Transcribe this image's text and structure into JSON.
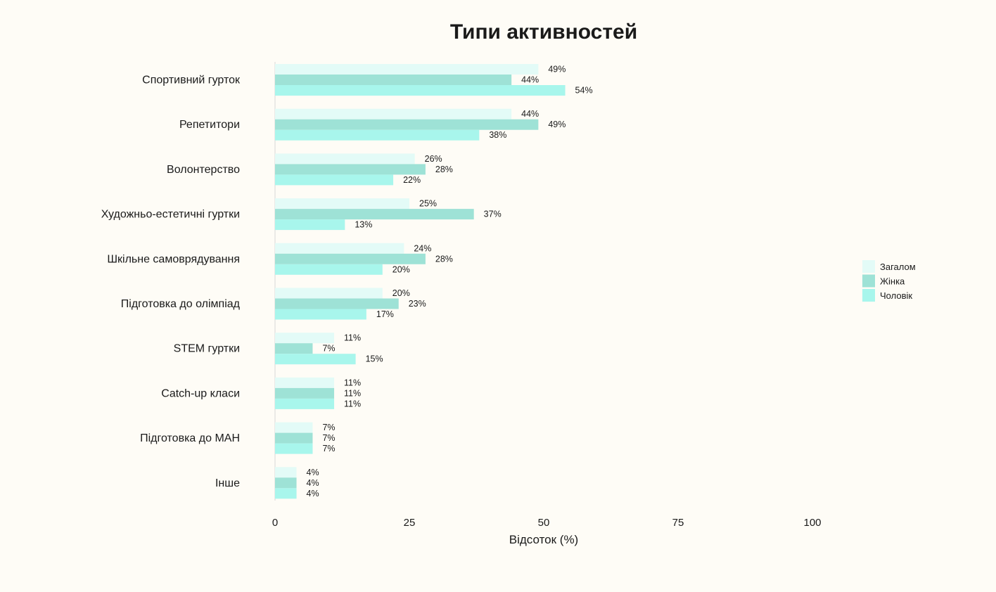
{
  "chart_data": {
    "type": "bar",
    "orientation": "horizontal",
    "title": "Типи активностей",
    "xlabel": "Відсоток (%)",
    "ylabel": "",
    "xlim": [
      0,
      100
    ],
    "xticks": [
      0,
      25,
      50,
      75,
      100
    ],
    "grid": false,
    "legend_position": "right",
    "value_suffix": "%",
    "categories": [
      "Спортивний гурток",
      "Репетитори",
      "Волонтерство",
      "Художньо-естетичні гуртки",
      "Шкільне самоврядування",
      "Підготовка до олімпіад",
      "STEM гуртки",
      "Catch-up класи",
      "Підготовка до МАН",
      "Інше"
    ],
    "series": [
      {
        "name": "Загалом",
        "color": "#e3fbf7",
        "values": [
          49,
          44,
          26,
          25,
          24,
          20,
          11,
          11,
          7,
          4
        ]
      },
      {
        "name": "Жінка",
        "color": "#9ee2d6",
        "values": [
          44,
          49,
          28,
          37,
          28,
          23,
          7,
          11,
          7,
          4
        ]
      },
      {
        "name": "Чоловік",
        "color": "#a8f6ec",
        "values": [
          54,
          38,
          22,
          13,
          20,
          17,
          15,
          11,
          7,
          4
        ]
      }
    ]
  }
}
